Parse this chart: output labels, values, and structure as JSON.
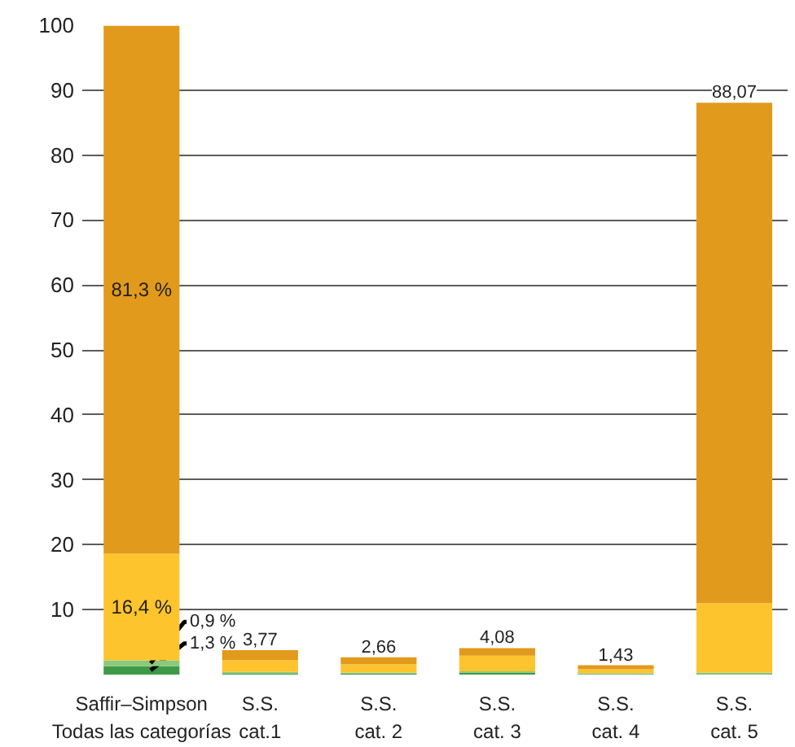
{
  "chart_data": {
    "type": "bar",
    "stacked": true,
    "categories": [
      "Saffir–Simpson\nTodas las categorías",
      "S.S.\ncat.1",
      "S.S.\ncat. 2",
      "S.S.\ncat. 3",
      "S.S.\ncat. 4",
      "S.S.\ncat. 5"
    ],
    "series": [
      {
        "color": "#3f9a48",
        "values": [
          1.3,
          0.2,
          0.2,
          0.3,
          0.1,
          0.1
        ],
        "value_labels": [
          "1,3 %",
          null,
          null,
          null,
          null,
          null
        ]
      },
      {
        "color": "#8cc97a",
        "values": [
          0.9,
          0.2,
          0.1,
          0.2,
          0.1,
          0.2
        ],
        "value_labels": [
          "0,9 %",
          null,
          null,
          null,
          null,
          null
        ]
      },
      {
        "color": "#fdc42e",
        "values": [
          16.4,
          1.8,
          1.3,
          2.4,
          0.6,
          10.7
        ],
        "value_labels": [
          "16,4 %",
          null,
          null,
          null,
          null,
          null
        ]
      },
      {
        "color": "#e29a1c",
        "values": [
          81.3,
          1.57,
          1.06,
          1.18,
          0.63,
          77.07
        ],
        "value_labels": [
          "81,3 %",
          null,
          null,
          null,
          null,
          null
        ]
      }
    ],
    "totals": [
      null,
      "3,77",
      "2,66",
      "4,08",
      "1,43",
      "88,07"
    ],
    "ylim": [
      0,
      100
    ],
    "yticks": [
      10,
      20,
      30,
      40,
      50,
      60,
      70,
      80,
      90,
      100
    ],
    "grid": "y"
  }
}
